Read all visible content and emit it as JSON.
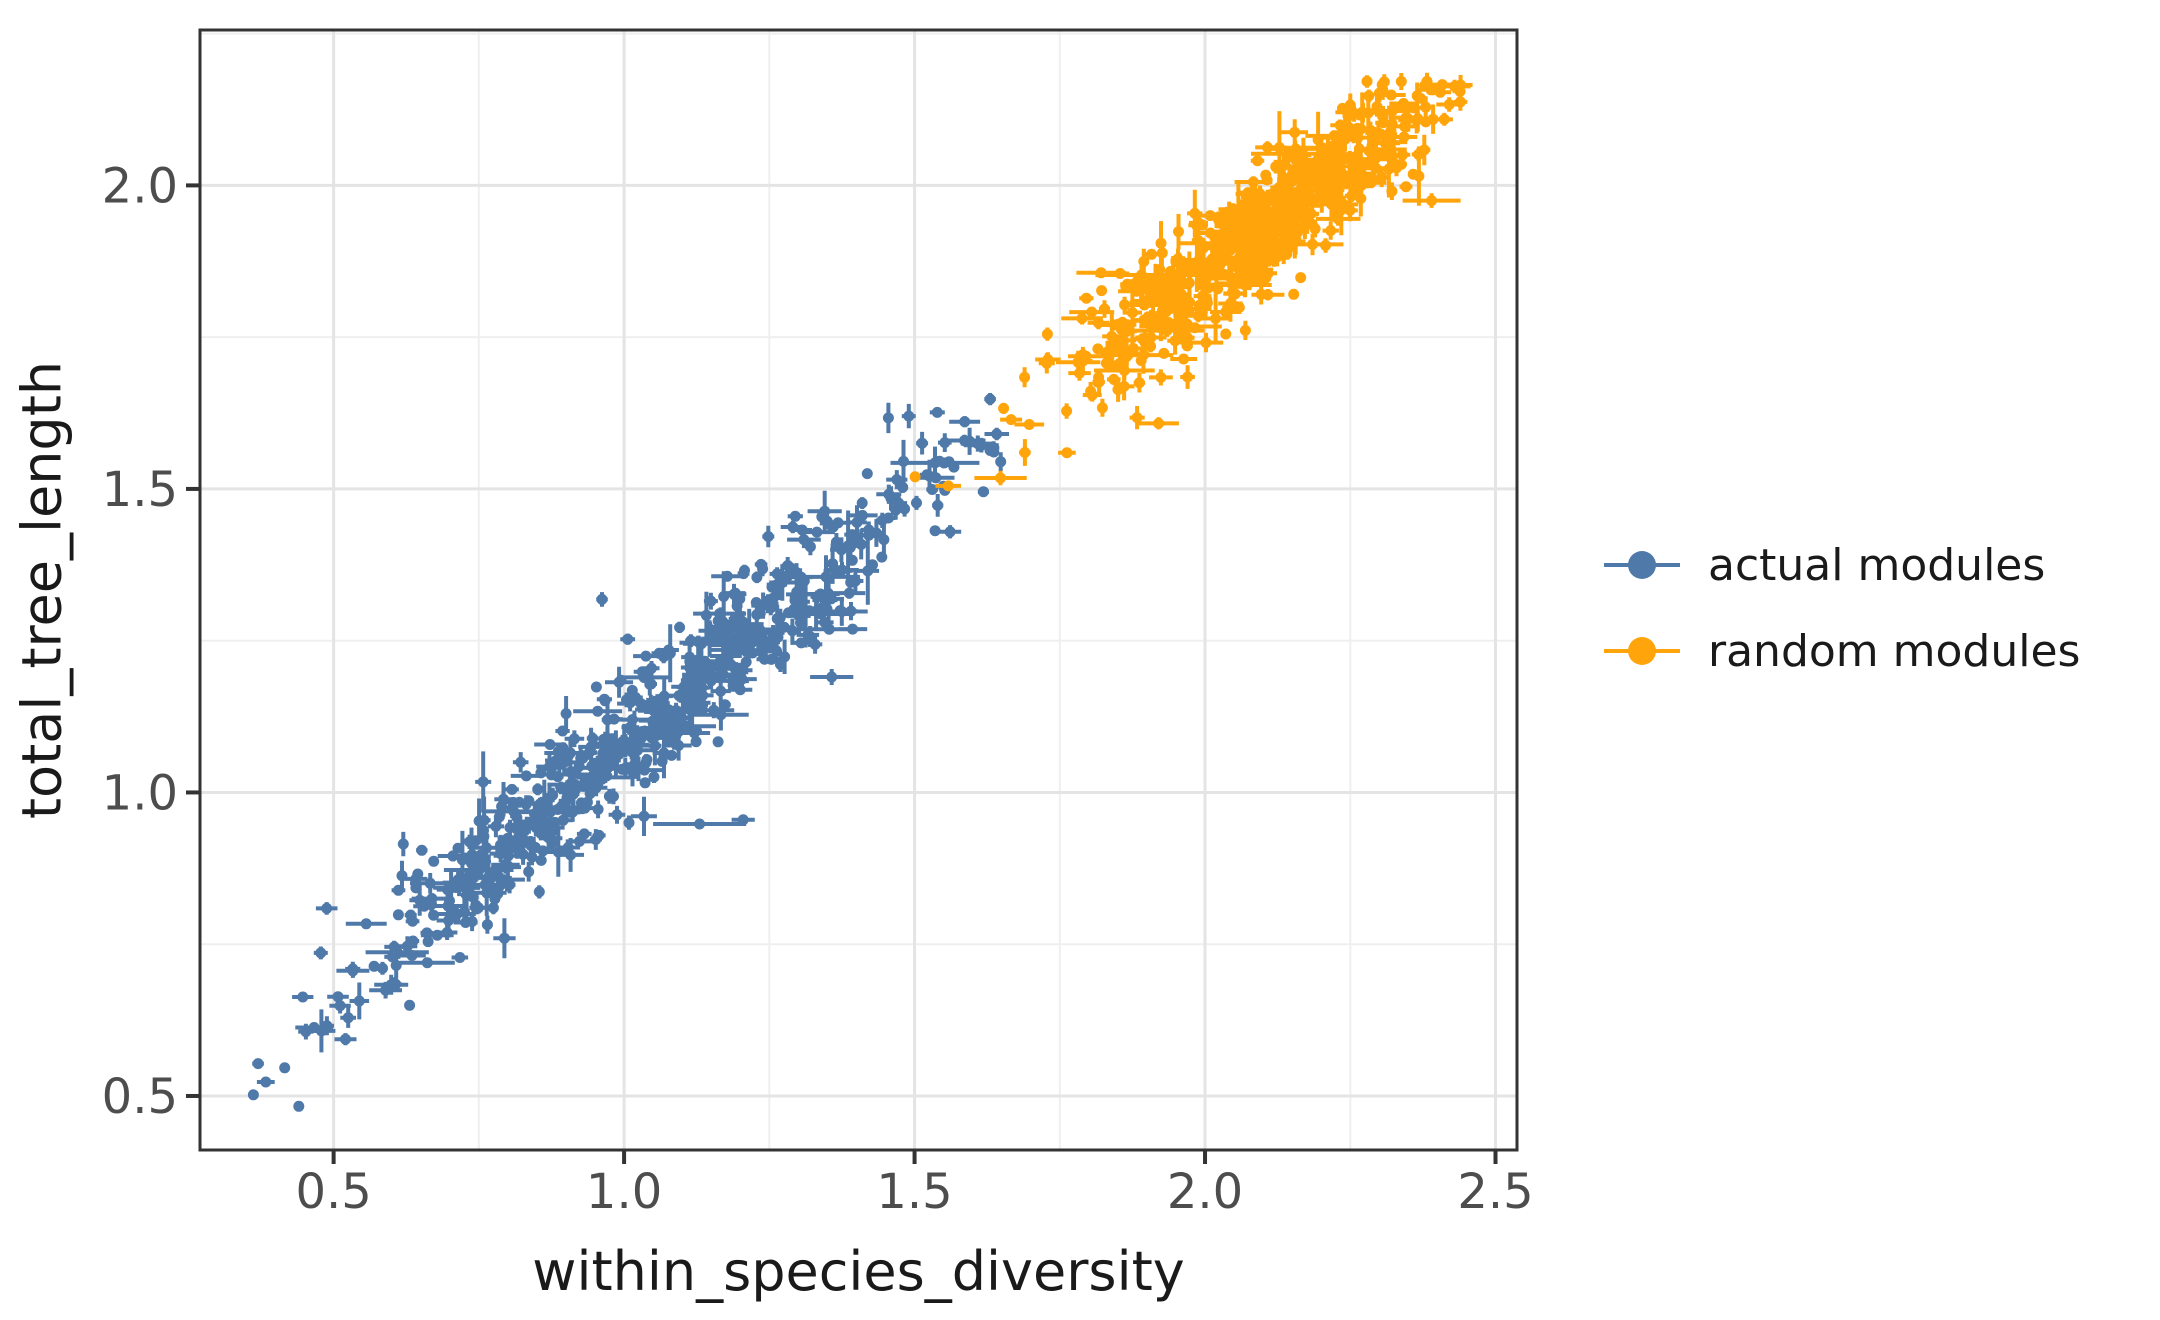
{
  "figure": {
    "background": "#ffffff"
  },
  "chart_data": {
    "type": "scatter",
    "title": "",
    "xlabel": "within_species_diversity",
    "ylabel": "total_tree_length",
    "x_range": [
      0.27,
      2.537
    ],
    "y_range": [
      0.411,
      2.256
    ],
    "x_major_ticks": [
      0.5,
      1.0,
      1.5,
      2.0,
      2.5
    ],
    "x_tick_labels": [
      "0.5",
      "1.0",
      "1.5",
      "2.0",
      "2.5"
    ],
    "x_minor_ticks": [
      0.75,
      1.25,
      1.75,
      2.25
    ],
    "y_major_ticks": [
      0.5,
      1.0,
      1.5,
      2.0
    ],
    "y_tick_labels": [
      "0.5",
      "1.0",
      "1.5",
      "2.0"
    ],
    "y_minor_ticks": [
      0.75,
      1.25,
      1.75,
      2.25
    ],
    "grid": "on",
    "legend_position": "right-center",
    "marker": "pointrange",
    "point_radius": 5.5,
    "error_bar_stroke": 4,
    "series": [
      {
        "name": "actual modules",
        "color": "#4e79a8",
        "n": 640,
        "seed": 7,
        "x_dist": {
          "mean": 1.04,
          "sd": 0.27,
          "min": 0.36,
          "max": 1.66
        },
        "trend": {
          "intercept": 0.25,
          "slope": 0.83
        },
        "y_scatter_sd": 0.055,
        "y_clip": [
          0.46,
          1.63
        ],
        "x_err": {
          "base": 0.003,
          "mean": 0.013,
          "max": 0.105
        },
        "y_err": {
          "base": 0.003,
          "mean": 0.01,
          "max": 0.065
        },
        "outlier_points": [
          [
            0.362,
            0.502,
            0.004,
            0.006
          ],
          [
            0.44,
            0.483,
            0.003,
            0.005
          ],
          [
            1.13,
            0.948,
            0.08,
            0.008
          ],
          [
            1.205,
            0.955,
            0.02,
            0.008
          ],
          [
            0.962,
            1.318,
            0.01,
            0.012
          ],
          [
            1.49,
            1.62,
            0.012,
            0.02
          ],
          [
            1.455,
            1.617,
            0.008,
            0.025
          ],
          [
            1.63,
            1.648,
            0.01,
            0.01
          ],
          [
            1.615,
            1.572,
            0.03,
            0.012
          ],
          [
            0.62,
            0.915,
            0.006,
            0.02
          ]
        ]
      },
      {
        "name": "random modules",
        "color": "#ffa40a",
        "n": 640,
        "seed": 99,
        "x_dist": {
          "mean": 2.09,
          "sd": 0.165,
          "min": 1.615,
          "max": 2.44
        },
        "trend": {
          "intercept": 0.355,
          "slope": 0.75
        },
        "y_scatter_sd": 0.05,
        "y_clip": [
          1.47,
          2.172
        ],
        "x_err": {
          "base": 0.003,
          "mean": 0.012,
          "max": 0.1
        },
        "y_err": {
          "base": 0.003,
          "mean": 0.01,
          "max": 0.06
        },
        "outlier_points": [
          [
            1.501,
            1.52,
            0.004,
            0.006
          ],
          [
            1.558,
            1.505,
            0.022,
            0.008
          ],
          [
            1.648,
            1.518,
            0.045,
            0.012
          ],
          [
            1.69,
            1.56,
            0.01,
            0.022
          ],
          [
            1.92,
            1.608,
            0.035,
            0.01
          ],
          [
            2.39,
            1.975,
            0.05,
            0.012
          ]
        ]
      }
    ],
    "style": {
      "grid_major_color": "#e4e4e4",
      "grid_minor_color": "#efefef",
      "panel_border_color": "#333333",
      "tick_color": "#333333",
      "tick_label_color": "#4d4d4d",
      "axis_title_color": "#1a1a1a",
      "legend_text_color": "#1a1a1a"
    }
  }
}
